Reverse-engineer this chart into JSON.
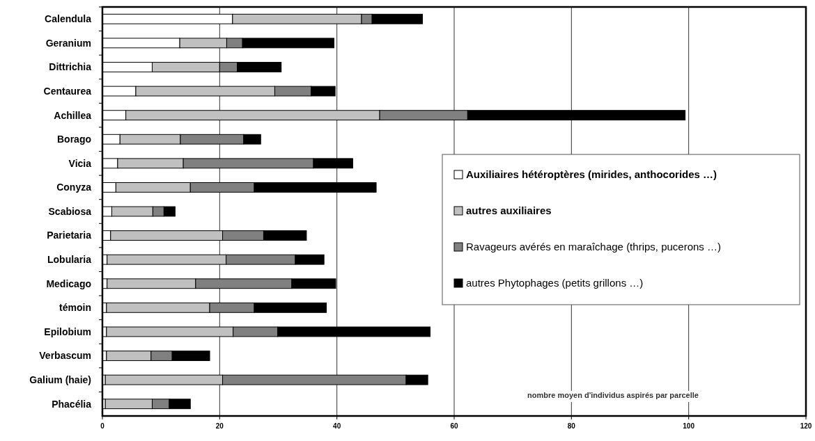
{
  "chart_data": {
    "type": "bar",
    "orientation": "horizontal",
    "stacked": true,
    "xlabel": "nombre moyen d'individus aspirés par parcelle",
    "categories": [
      "Calendula",
      "Geranium",
      "Dittrichia",
      "Centaurea",
      "Achillea",
      "Borago",
      "Vicia",
      "Conyza",
      "Scabiosa",
      "Parietaria",
      "Lobularia",
      "Medicago",
      "témoin",
      "Epilobium",
      "Verbascum",
      "Galium (haie)",
      "Phacélia"
    ],
    "series": [
      {
        "name": "Auxiliaires hétéroptères (mirides, anthocorides …)",
        "color": "#ffffff",
        "values": [
          22.2,
          13.2,
          8.5,
          5.7,
          4.0,
          3.0,
          2.6,
          2.3,
          1.6,
          1.4,
          0.8,
          0.8,
          0.7,
          0.7,
          0.7,
          0.5,
          0.5
        ]
      },
      {
        "name": "autres auxiliaires",
        "color": "#c0c0c0",
        "values": [
          22.0,
          8.0,
          11.5,
          23.7,
          43.3,
          10.3,
          11.2,
          12.7,
          7.0,
          19.1,
          20.3,
          15.1,
          17.6,
          21.6,
          7.6,
          20.0,
          8.0
        ]
      },
      {
        "name": "Ravageurs avérés en maraîchage (thrips, pucerons …)",
        "color": "#808080",
        "values": [
          1.8,
          2.7,
          3.0,
          6.2,
          15.0,
          10.8,
          22.2,
          10.9,
          1.9,
          7.0,
          11.8,
          16.4,
          7.6,
          7.6,
          3.6,
          31.3,
          2.9
        ]
      },
      {
        "name": "autres Phytophages (petits grillons …)",
        "color": "#000000",
        "values": [
          8.6,
          15.6,
          7.5,
          4.1,
          37.1,
          2.9,
          6.7,
          20.8,
          1.9,
          7.3,
          4.9,
          7.5,
          12.3,
          26.0,
          6.4,
          3.7,
          3.6
        ]
      }
    ],
    "xlim": [
      0,
      120
    ],
    "xticks": [
      0,
      20,
      40,
      60,
      80,
      100,
      120
    ],
    "grid": "x",
    "legend": "right"
  }
}
